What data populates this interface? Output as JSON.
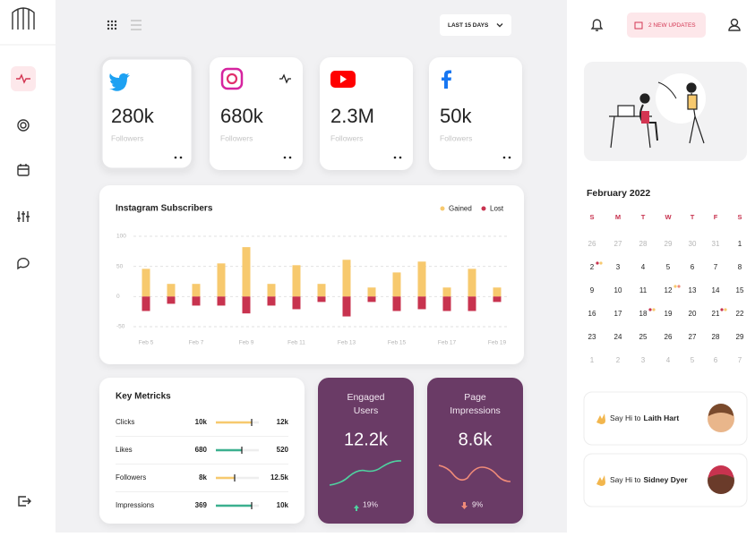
{
  "header": {
    "period": "LAST 15 DAYS",
    "updates": "2 NEW UPDATES"
  },
  "social_cards": [
    {
      "value": "280k",
      "label": "Followers"
    },
    {
      "value": "680k",
      "label": "Followers"
    },
    {
      "value": "2.3M",
      "label": "Followers"
    },
    {
      "value": "50k",
      "label": "Followers"
    }
  ],
  "chart_data": {
    "type": "bar",
    "title": "Instagram Subscribers",
    "categories": [
      "Feb 5",
      null,
      "Feb 7",
      null,
      "Feb 9",
      null,
      "Feb 11",
      null,
      "Feb 13",
      null,
      "Feb 15",
      null,
      "Feb 17",
      null,
      "Feb 19"
    ],
    "series": [
      {
        "name": "Gained",
        "color": "#f7c96e",
        "values": [
          46,
          21,
          21,
          55,
          82,
          21,
          52,
          21,
          61,
          15,
          40,
          58,
          15,
          46,
          15
        ]
      },
      {
        "name": "Lost",
        "color": "#c8334f",
        "values": [
          -24,
          -12,
          -15,
          -15,
          -28,
          -15,
          -21,
          -9,
          -33,
          -9,
          -24,
          -21,
          -24,
          -24,
          -9
        ]
      }
    ],
    "ylim": [
      -50,
      100
    ],
    "yticks": [
      -50,
      0,
      50,
      100
    ],
    "grid": true,
    "legend": "top-right"
  },
  "key_metrics": {
    "title": "Key Metricks",
    "rows": [
      {
        "label": "Clicks",
        "from": "10k",
        "to": "12k"
      },
      {
        "label": "Likes",
        "from": "680",
        "to": "520"
      },
      {
        "label": "Followers",
        "from": "8k",
        "to": "12.5k"
      },
      {
        "label": "Impressions",
        "from": "369",
        "to": "10k"
      }
    ]
  },
  "stat_cards": [
    {
      "title_lines": [
        "Engaged",
        "Users"
      ],
      "value": "12.2k",
      "change": "19%"
    },
    {
      "title_lines": [
        "Page",
        "Impressions"
      ],
      "value": "8.6k",
      "change": "9%"
    }
  ],
  "calendar": {
    "month": "February 2022",
    "weekdays": [
      "S",
      "M",
      "T",
      "W",
      "T",
      "F",
      "S"
    ],
    "weeks": [
      [
        26,
        27,
        28,
        29,
        30,
        31,
        1
      ],
      [
        2,
        3,
        4,
        5,
        6,
        7,
        8
      ],
      [
        9,
        10,
        11,
        12,
        13,
        14,
        15
      ],
      [
        16,
        17,
        18,
        19,
        20,
        21,
        22
      ],
      [
        23,
        24,
        25,
        26,
        27,
        28,
        29
      ],
      [
        1,
        2,
        3,
        4,
        5,
        6,
        7
      ]
    ]
  },
  "greetings": [
    {
      "prefix": "Say Hi to",
      "name": "Laith Hart"
    },
    {
      "prefix": "Say Hi to",
      "name": "Sidney Dyer"
    }
  ]
}
